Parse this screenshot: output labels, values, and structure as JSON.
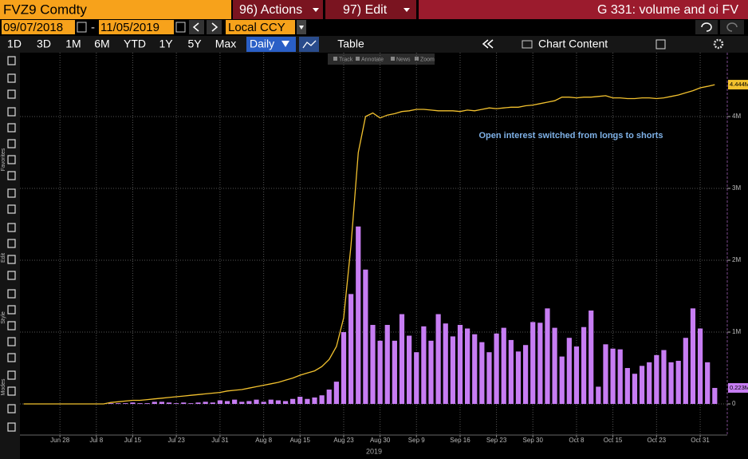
{
  "header": {
    "ticker": "FVZ9 Comdty",
    "actions": "96) Actions",
    "edit": "97) Edit",
    "title": "G 331: volume and oi FV"
  },
  "toolbar": {
    "start_date": "09/07/2018",
    "date_sep": "-",
    "end_date": "11/05/2019",
    "currency": "Local CCY",
    "periods": [
      "1D",
      "3D",
      "1M",
      "6M",
      "YTD",
      "1Y",
      "5Y",
      "Max"
    ],
    "frequency": "Daily",
    "table": "Table",
    "chart_content": "Chart Content"
  },
  "chart_tools": [
    "Track",
    "Annotate",
    "News",
    "Zoom"
  ],
  "side_labels": [
    "Favorites",
    "Edit",
    "Style",
    "Modes"
  ],
  "chart_data": {
    "type": "combo",
    "x_sublabel": "2019",
    "annotation": "Open interest switched from longs to shorts",
    "grid": true,
    "categories": [
      null,
      null,
      null,
      null,
      null,
      "Jun 28",
      null,
      null,
      null,
      null,
      "Jul 8",
      null,
      null,
      null,
      null,
      "Jul 15",
      null,
      null,
      null,
      null,
      null,
      "Jul 23",
      null,
      null,
      null,
      null,
      null,
      "Jul 31",
      null,
      null,
      null,
      null,
      null,
      "Aug 8",
      null,
      null,
      null,
      null,
      "Aug 15",
      null,
      null,
      null,
      null,
      null,
      "Aug 23",
      null,
      null,
      null,
      null,
      "Aug 30",
      null,
      null,
      null,
      null,
      "Sep 9",
      null,
      null,
      null,
      null,
      null,
      "Sep 16",
      null,
      null,
      null,
      null,
      "Sep 23",
      null,
      null,
      null,
      null,
      "Sep 30",
      null,
      null,
      null,
      null,
      null,
      "Oct 8",
      null,
      null,
      null,
      null,
      "Oct 15",
      null,
      null,
      null,
      null,
      null,
      "Oct 23",
      null,
      null,
      null,
      null,
      null,
      "Oct 31",
      null,
      null,
      null
    ],
    "ylim": [
      -433000,
      4889000
    ],
    "yticks": [
      0,
      {
        "value": 1000000,
        "label": "1M"
      },
      {
        "value": 2000000,
        "label": "2M"
      },
      {
        "value": 3000000,
        "label": "3M"
      },
      {
        "value": 4000000,
        "label": "4M"
      }
    ],
    "series": [
      {
        "type": "bar",
        "color": "#c77df3",
        "values": [
          null,
          null,
          null,
          null,
          null,
          null,
          null,
          null,
          null,
          null,
          null,
          null,
          10000,
          10000,
          10000,
          20000,
          10000,
          10000,
          30000,
          30000,
          20000,
          10000,
          20000,
          10000,
          20000,
          30000,
          20000,
          50000,
          40000,
          60000,
          30000,
          40000,
          60000,
          30000,
          60000,
          50000,
          40000,
          70000,
          100000,
          70000,
          90000,
          120000,
          200000,
          310000,
          1000000,
          1530000,
          2470000,
          1870000,
          1100000,
          880000,
          1100000,
          880000,
          1250000,
          950000,
          720000,
          1080000,
          880000,
          1250000,
          1120000,
          940000,
          1100000,
          1050000,
          970000,
          860000,
          720000,
          980000,
          1060000,
          890000,
          730000,
          820000,
          1140000,
          1130000,
          1330000,
          1060000,
          660000,
          920000,
          800000,
          1070000,
          1300000,
          240000,
          830000,
          770000,
          760000,
          500000,
          420000,
          530000,
          580000,
          680000,
          750000,
          580000,
          600000,
          920000,
          1330000,
          1050000,
          580000,
          223000,
          null
        ],
        "value_labels": [
          null,
          null,
          null,
          null,
          null,
          null,
          null,
          null,
          null,
          null,
          null,
          null,
          null,
          null,
          null,
          null,
          null,
          null,
          null,
          null,
          null,
          null,
          null,
          null,
          null,
          null,
          null,
          null,
          null,
          null,
          null,
          null,
          null,
          null,
          null,
          null,
          null,
          null,
          null,
          null,
          null,
          null,
          null,
          null,
          null,
          null,
          null,
          null,
          null,
          null,
          null,
          null,
          null,
          null,
          null,
          null,
          null,
          null,
          null,
          null,
          null,
          null,
          null,
          null,
          null,
          null,
          null,
          null,
          null,
          null,
          null,
          null,
          null,
          null,
          null,
          null,
          null,
          null,
          null,
          null,
          null,
          null,
          null,
          null,
          null,
          null,
          null,
          null,
          null,
          null,
          null,
          null,
          null,
          null,
          null,
          "0.223M",
          null
        ]
      },
      {
        "type": "line",
        "color": "#f2c12e",
        "values": [
          0,
          0,
          0,
          0,
          0,
          0,
          0,
          0,
          0,
          0,
          0,
          0,
          20000,
          30000,
          40000,
          50000,
          50000,
          60000,
          70000,
          80000,
          90000,
          100000,
          110000,
          120000,
          130000,
          140000,
          150000,
          160000,
          180000,
          190000,
          200000,
          220000,
          240000,
          260000,
          280000,
          300000,
          330000,
          360000,
          400000,
          430000,
          460000,
          520000,
          620000,
          800000,
          1200000,
          2200000,
          3500000,
          4000000,
          4050000,
          3980000,
          4020000,
          4040000,
          4070000,
          4080000,
          4100000,
          4100000,
          4090000,
          4080000,
          4080000,
          4080000,
          4070000,
          4090000,
          4080000,
          4100000,
          4120000,
          4110000,
          4120000,
          4130000,
          4130000,
          4150000,
          4160000,
          4180000,
          4200000,
          4220000,
          4270000,
          4270000,
          4260000,
          4270000,
          4270000,
          4280000,
          4290000,
          4260000,
          4260000,
          4250000,
          4250000,
          4260000,
          4260000,
          4250000,
          4260000,
          4280000,
          4300000,
          4330000,
          4360000,
          4400000,
          4420000,
          4444000,
          null
        ],
        "value_labels": [
          null,
          null,
          null,
          null,
          null,
          null,
          null,
          null,
          null,
          null,
          null,
          null,
          null,
          null,
          null,
          null,
          null,
          null,
          null,
          null,
          null,
          null,
          null,
          null,
          null,
          null,
          null,
          null,
          null,
          null,
          null,
          null,
          null,
          null,
          null,
          null,
          null,
          null,
          null,
          null,
          null,
          null,
          null,
          null,
          null,
          null,
          null,
          null,
          null,
          null,
          null,
          null,
          null,
          null,
          null,
          null,
          null,
          null,
          null,
          null,
          null,
          null,
          null,
          null,
          null,
          null,
          null,
          null,
          null,
          null,
          null,
          null,
          null,
          null,
          null,
          null,
          null,
          null,
          null,
          null,
          null,
          null,
          null,
          null,
          null,
          null,
          null,
          null,
          null,
          null,
          null,
          null,
          null,
          null,
          null,
          "4.444M",
          null
        ]
      }
    ]
  }
}
